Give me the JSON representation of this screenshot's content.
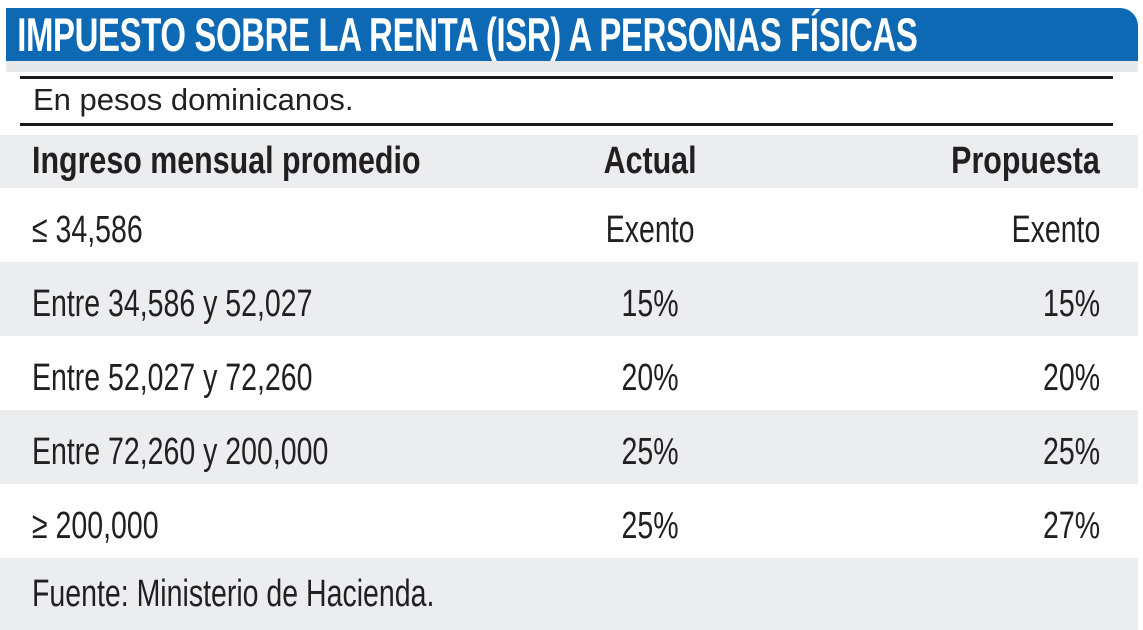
{
  "banner": {
    "title": "IMPUESTO SOBRE LA RENTA (ISR) A PERSONAS FÍSICAS"
  },
  "subtitle": "En pesos dominicanos.",
  "chart_data": {
    "type": "table",
    "title": "IMPUESTO SOBRE LA RENTA (ISR) A PERSONAS FÍSICAS",
    "subtitle": "En pesos dominicanos.",
    "columns": [
      "Ingreso mensual promedio",
      "Actual",
      "Propuesta"
    ],
    "rows": [
      {
        "ingreso": "≤ 34,586",
        "actual": "Exento",
        "propuesta": "Exento"
      },
      {
        "ingreso": "Entre 34,586 y 52,027",
        "actual": "15%",
        "propuesta": "15%"
      },
      {
        "ingreso": "Entre 52,027 y 72,260",
        "actual": "20%",
        "propuesta": "20%"
      },
      {
        "ingreso": "Entre 72,260 y 200,000",
        "actual": "25%",
        "propuesta": "25%"
      },
      {
        "ingreso": "≥ 200,000",
        "actual": "25%",
        "propuesta": "27%"
      }
    ],
    "source": "Fuente: Ministerio de Hacienda.",
    "layout": {
      "row_striping": true,
      "actual_align": "center",
      "propuesta_align": "right"
    }
  },
  "colors": {
    "banner_blue": "#0d69b4",
    "row_gray": "#ebedef",
    "shadow_gray": "#e6e8ea",
    "text": "#231f20",
    "rule_black": "#1a1a1a",
    "banner_text": "#ffffff"
  }
}
